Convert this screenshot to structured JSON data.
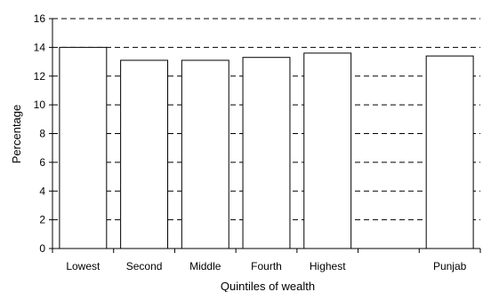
{
  "chart_data": {
    "type": "bar",
    "title": "",
    "xlabel": "Quintiles of wealth",
    "ylabel": "Percentage",
    "categories": [
      "Lowest",
      "Second",
      "Middle",
      "Fourth",
      "Highest",
      "",
      "Punjab"
    ],
    "values": [
      14.0,
      13.1,
      13.1,
      13.3,
      13.6,
      null,
      13.4
    ],
    "ylim": [
      0,
      16
    ],
    "yticks": [
      0,
      2,
      4,
      6,
      8,
      10,
      12,
      14,
      16
    ],
    "grid": true,
    "legend": "none",
    "colors": {
      "bar_fill": "#ffffff",
      "bar_stroke": "#000000",
      "grid": "#000000"
    }
  }
}
